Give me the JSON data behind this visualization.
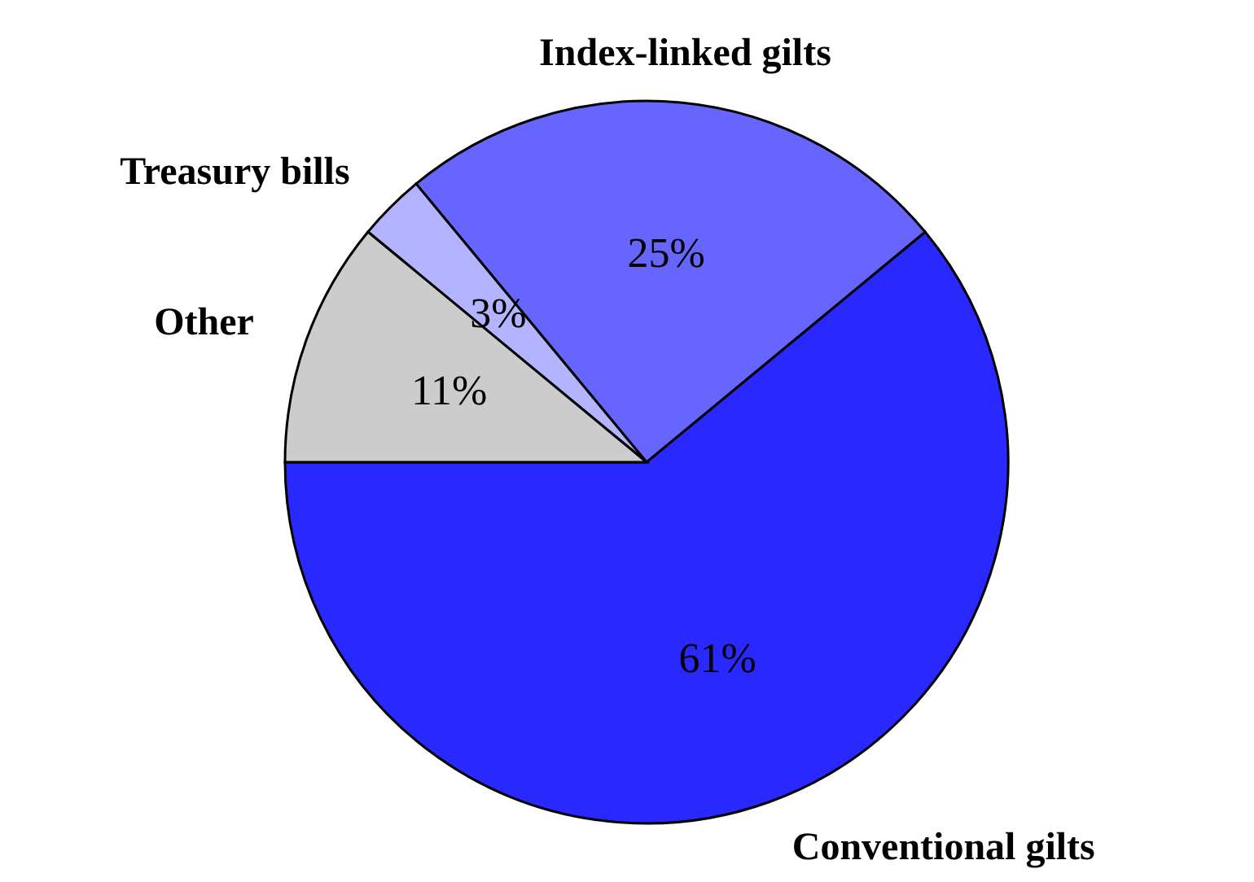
{
  "chart_data": {
    "type": "pie",
    "categories": [
      "Conventional gilts",
      "Index-linked gilts",
      "Treasury bills",
      "Other"
    ],
    "values": [
      61,
      25,
      3,
      11
    ],
    "colors": [
      "#2828ff",
      "#6666ff",
      "#b3b3ff",
      "#cccccc"
    ],
    "value_labels": [
      "61%",
      "25%",
      "3%",
      "11%"
    ]
  }
}
